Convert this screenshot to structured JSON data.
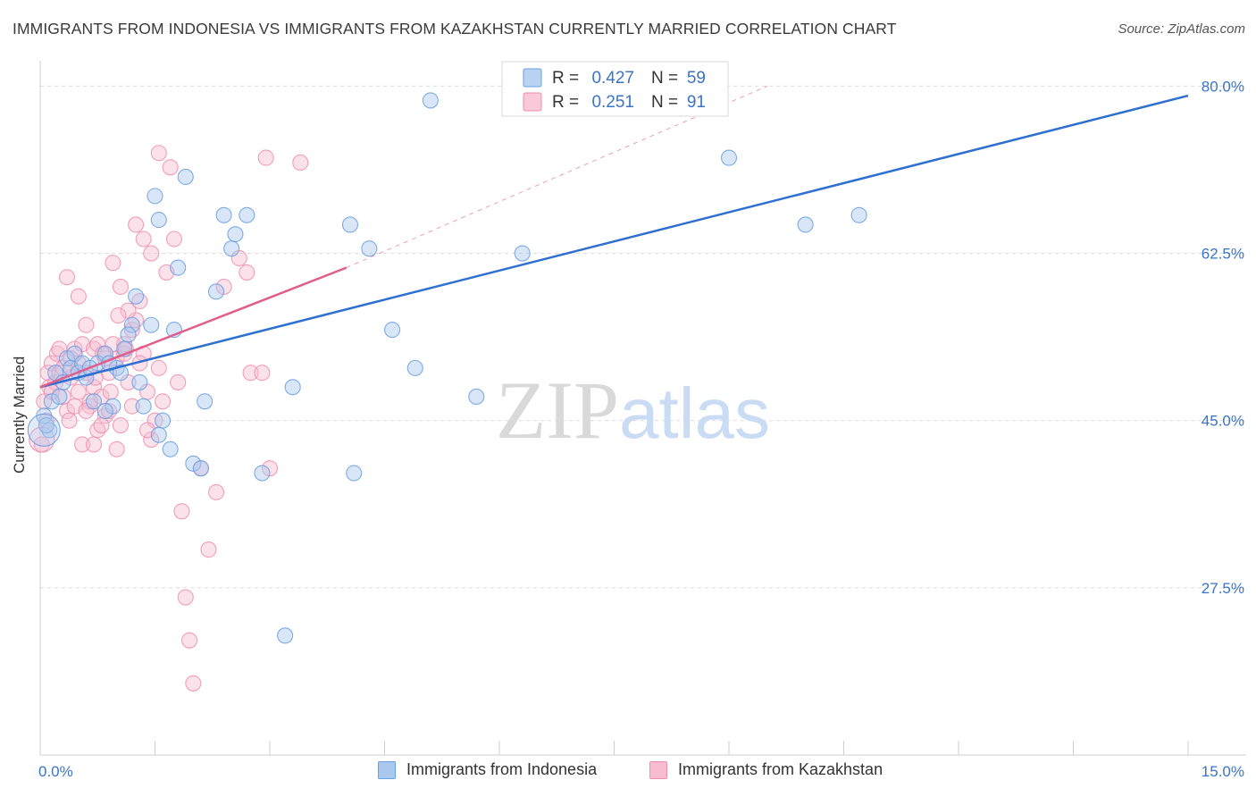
{
  "chart_data": {
    "type": "scatter",
    "title": "IMMIGRANTS FROM INDONESIA VS IMMIGRANTS FROM KAZAKHSTAN CURRENTLY MARRIED CORRELATION CHART",
    "source": "Source: ZipAtlas.com",
    "xlabel": "",
    "ylabel": "Currently Married",
    "xlim": [
      0,
      15
    ],
    "ylim": [
      10,
      82
    ],
    "x_tick_labels": [
      "0.0%",
      "15.0%"
    ],
    "y_ticks": [
      27.5,
      45.0,
      62.5,
      80.0
    ],
    "y_tick_labels": [
      "27.5%",
      "45.0%",
      "62.5%",
      "80.0%"
    ],
    "watermark": "ZIPatlas",
    "legend": {
      "rows": [
        {
          "r_label": "R =",
          "r_value": "0.427",
          "n_label": "N =",
          "n_value": "59"
        },
        {
          "r_label": "R =",
          "r_value": "0.251",
          "n_label": "N =",
          "n_value": "91"
        }
      ]
    },
    "series": [
      {
        "name": "Immigrants from Indonesia",
        "color": "#6a9fe0",
        "fill": "#a9c8f0",
        "line_color": "#2e6fd0",
        "trend": {
          "x": [
            0.0,
            15.0
          ],
          "y": [
            48.5,
            79.0
          ]
        },
        "points": [
          [
            0.05,
            45.5
          ],
          [
            0.12,
            44.0
          ],
          [
            0.15,
            47.0
          ],
          [
            0.2,
            50.0
          ],
          [
            0.3,
            49.0
          ],
          [
            0.35,
            51.5
          ],
          [
            0.4,
            50.5
          ],
          [
            0.45,
            52.0
          ],
          [
            0.5,
            50.0
          ],
          [
            0.55,
            51.0
          ],
          [
            0.6,
            49.5
          ],
          [
            0.7,
            47.0
          ],
          [
            0.75,
            51.0
          ],
          [
            0.85,
            52.0
          ],
          [
            0.95,
            46.5
          ],
          [
            1.0,
            50.5
          ],
          [
            1.1,
            52.5
          ],
          [
            1.2,
            55.0
          ],
          [
            1.25,
            58.0
          ],
          [
            1.3,
            49.0
          ],
          [
            1.35,
            46.5
          ],
          [
            1.45,
            55.0
          ],
          [
            1.55,
            43.5
          ],
          [
            1.6,
            45.0
          ],
          [
            1.7,
            42.0
          ],
          [
            1.75,
            54.5
          ],
          [
            1.8,
            61.0
          ],
          [
            1.9,
            70.5
          ],
          [
            2.0,
            40.5
          ],
          [
            2.1,
            40.0
          ],
          [
            2.15,
            47.0
          ],
          [
            2.3,
            58.5
          ],
          [
            2.4,
            66.5
          ],
          [
            2.5,
            63.0
          ],
          [
            2.55,
            64.5
          ],
          [
            2.7,
            66.5
          ],
          [
            2.9,
            39.5
          ],
          [
            3.2,
            22.5
          ],
          [
            3.3,
            48.5
          ],
          [
            4.1,
            39.5
          ],
          [
            4.05,
            65.5
          ],
          [
            4.3,
            63.0
          ],
          [
            4.6,
            54.5
          ],
          [
            4.9,
            50.5
          ],
          [
            5.1,
            78.5
          ],
          [
            5.7,
            47.5
          ],
          [
            6.3,
            62.5
          ],
          [
            9.0,
            72.5
          ],
          [
            10.0,
            65.5
          ],
          [
            10.7,
            66.5
          ],
          [
            1.5,
            68.5
          ],
          [
            1.55,
            66.0
          ],
          [
            0.9,
            51.0
          ],
          [
            0.65,
            50.5
          ],
          [
            1.05,
            50.0
          ],
          [
            0.25,
            47.5
          ],
          [
            1.15,
            54.0
          ],
          [
            0.85,
            46.0
          ],
          [
            0.08,
            44.5
          ]
        ]
      },
      {
        "name": "Immigrants from Kazakhstan",
        "color": "#ee8fb0",
        "fill": "#f7bcd0",
        "line_color": "#e05d8c",
        "trend": {
          "x": [
            0.0,
            4.0
          ],
          "y": [
            48.5,
            61.0
          ]
        },
        "trend_ext": {
          "x": [
            4.0,
            9.5
          ],
          "y": [
            61.0,
            80.0
          ]
        },
        "points": [
          [
            0.02,
            42.5
          ],
          [
            0.05,
            47.0
          ],
          [
            0.08,
            45.0
          ],
          [
            0.1,
            50.0
          ],
          [
            0.12,
            48.5
          ],
          [
            0.15,
            51.0
          ],
          [
            0.2,
            49.0
          ],
          [
            0.22,
            52.0
          ],
          [
            0.25,
            50.0
          ],
          [
            0.3,
            47.5
          ],
          [
            0.35,
            46.0
          ],
          [
            0.38,
            45.0
          ],
          [
            0.4,
            49.5
          ],
          [
            0.45,
            52.5
          ],
          [
            0.5,
            51.0
          ],
          [
            0.5,
            48.0
          ],
          [
            0.55,
            53.0
          ],
          [
            0.6,
            50.0
          ],
          [
            0.65,
            46.5
          ],
          [
            0.7,
            48.5
          ],
          [
            0.7,
            52.5
          ],
          [
            0.75,
            44.0
          ],
          [
            0.8,
            47.5
          ],
          [
            0.85,
            45.5
          ],
          [
            0.9,
            50.0
          ],
          [
            0.95,
            53.0
          ],
          [
            1.0,
            51.5
          ],
          [
            1.05,
            44.5
          ],
          [
            1.1,
            52.0
          ],
          [
            1.15,
            49.0
          ],
          [
            1.2,
            54.5
          ],
          [
            1.25,
            55.5
          ],
          [
            1.3,
            57.5
          ],
          [
            1.35,
            52.0
          ],
          [
            1.4,
            48.0
          ],
          [
            1.45,
            43.0
          ],
          [
            1.5,
            45.0
          ],
          [
            1.55,
            50.5
          ],
          [
            1.6,
            47.0
          ],
          [
            1.65,
            60.5
          ],
          [
            1.7,
            71.5
          ],
          [
            1.75,
            64.0
          ],
          [
            1.8,
            49.0
          ],
          [
            1.85,
            35.5
          ],
          [
            1.9,
            26.5
          ],
          [
            1.95,
            22.0
          ],
          [
            2.0,
            17.5
          ],
          [
            2.1,
            40.0
          ],
          [
            2.2,
            31.5
          ],
          [
            2.3,
            37.5
          ],
          [
            2.4,
            59.0
          ],
          [
            2.6,
            62.0
          ],
          [
            2.7,
            60.5
          ],
          [
            2.75,
            50.0
          ],
          [
            2.95,
            72.5
          ],
          [
            3.0,
            40.0
          ],
          [
            3.4,
            72.0
          ],
          [
            0.35,
            60.0
          ],
          [
            0.5,
            58.0
          ],
          [
            0.6,
            55.0
          ],
          [
            0.75,
            53.0
          ],
          [
            0.85,
            51.5
          ],
          [
            0.95,
            61.5
          ],
          [
            1.05,
            59.0
          ],
          [
            1.15,
            56.5
          ],
          [
            1.25,
            65.5
          ],
          [
            1.35,
            64.0
          ],
          [
            1.45,
            62.5
          ],
          [
            1.55,
            73.0
          ],
          [
            0.25,
            52.5
          ],
          [
            0.45,
            46.5
          ],
          [
            0.55,
            42.5
          ],
          [
            0.65,
            47.0
          ],
          [
            0.7,
            42.5
          ],
          [
            0.8,
            44.5
          ],
          [
            0.9,
            46.0
          ],
          [
            1.0,
            42.0
          ],
          [
            1.1,
            53.0
          ],
          [
            1.2,
            46.5
          ],
          [
            1.3,
            51.0
          ],
          [
            1.4,
            44.0
          ],
          [
            0.15,
            48.0
          ],
          [
            0.3,
            50.5
          ],
          [
            0.4,
            51.5
          ],
          [
            0.6,
            46.0
          ],
          [
            0.72,
            49.5
          ],
          [
            0.82,
            52.0
          ],
          [
            0.92,
            48.0
          ],
          [
            1.02,
            56.0
          ],
          [
            1.12,
            52.5
          ],
          [
            2.9,
            50.0
          ]
        ]
      }
    ]
  }
}
